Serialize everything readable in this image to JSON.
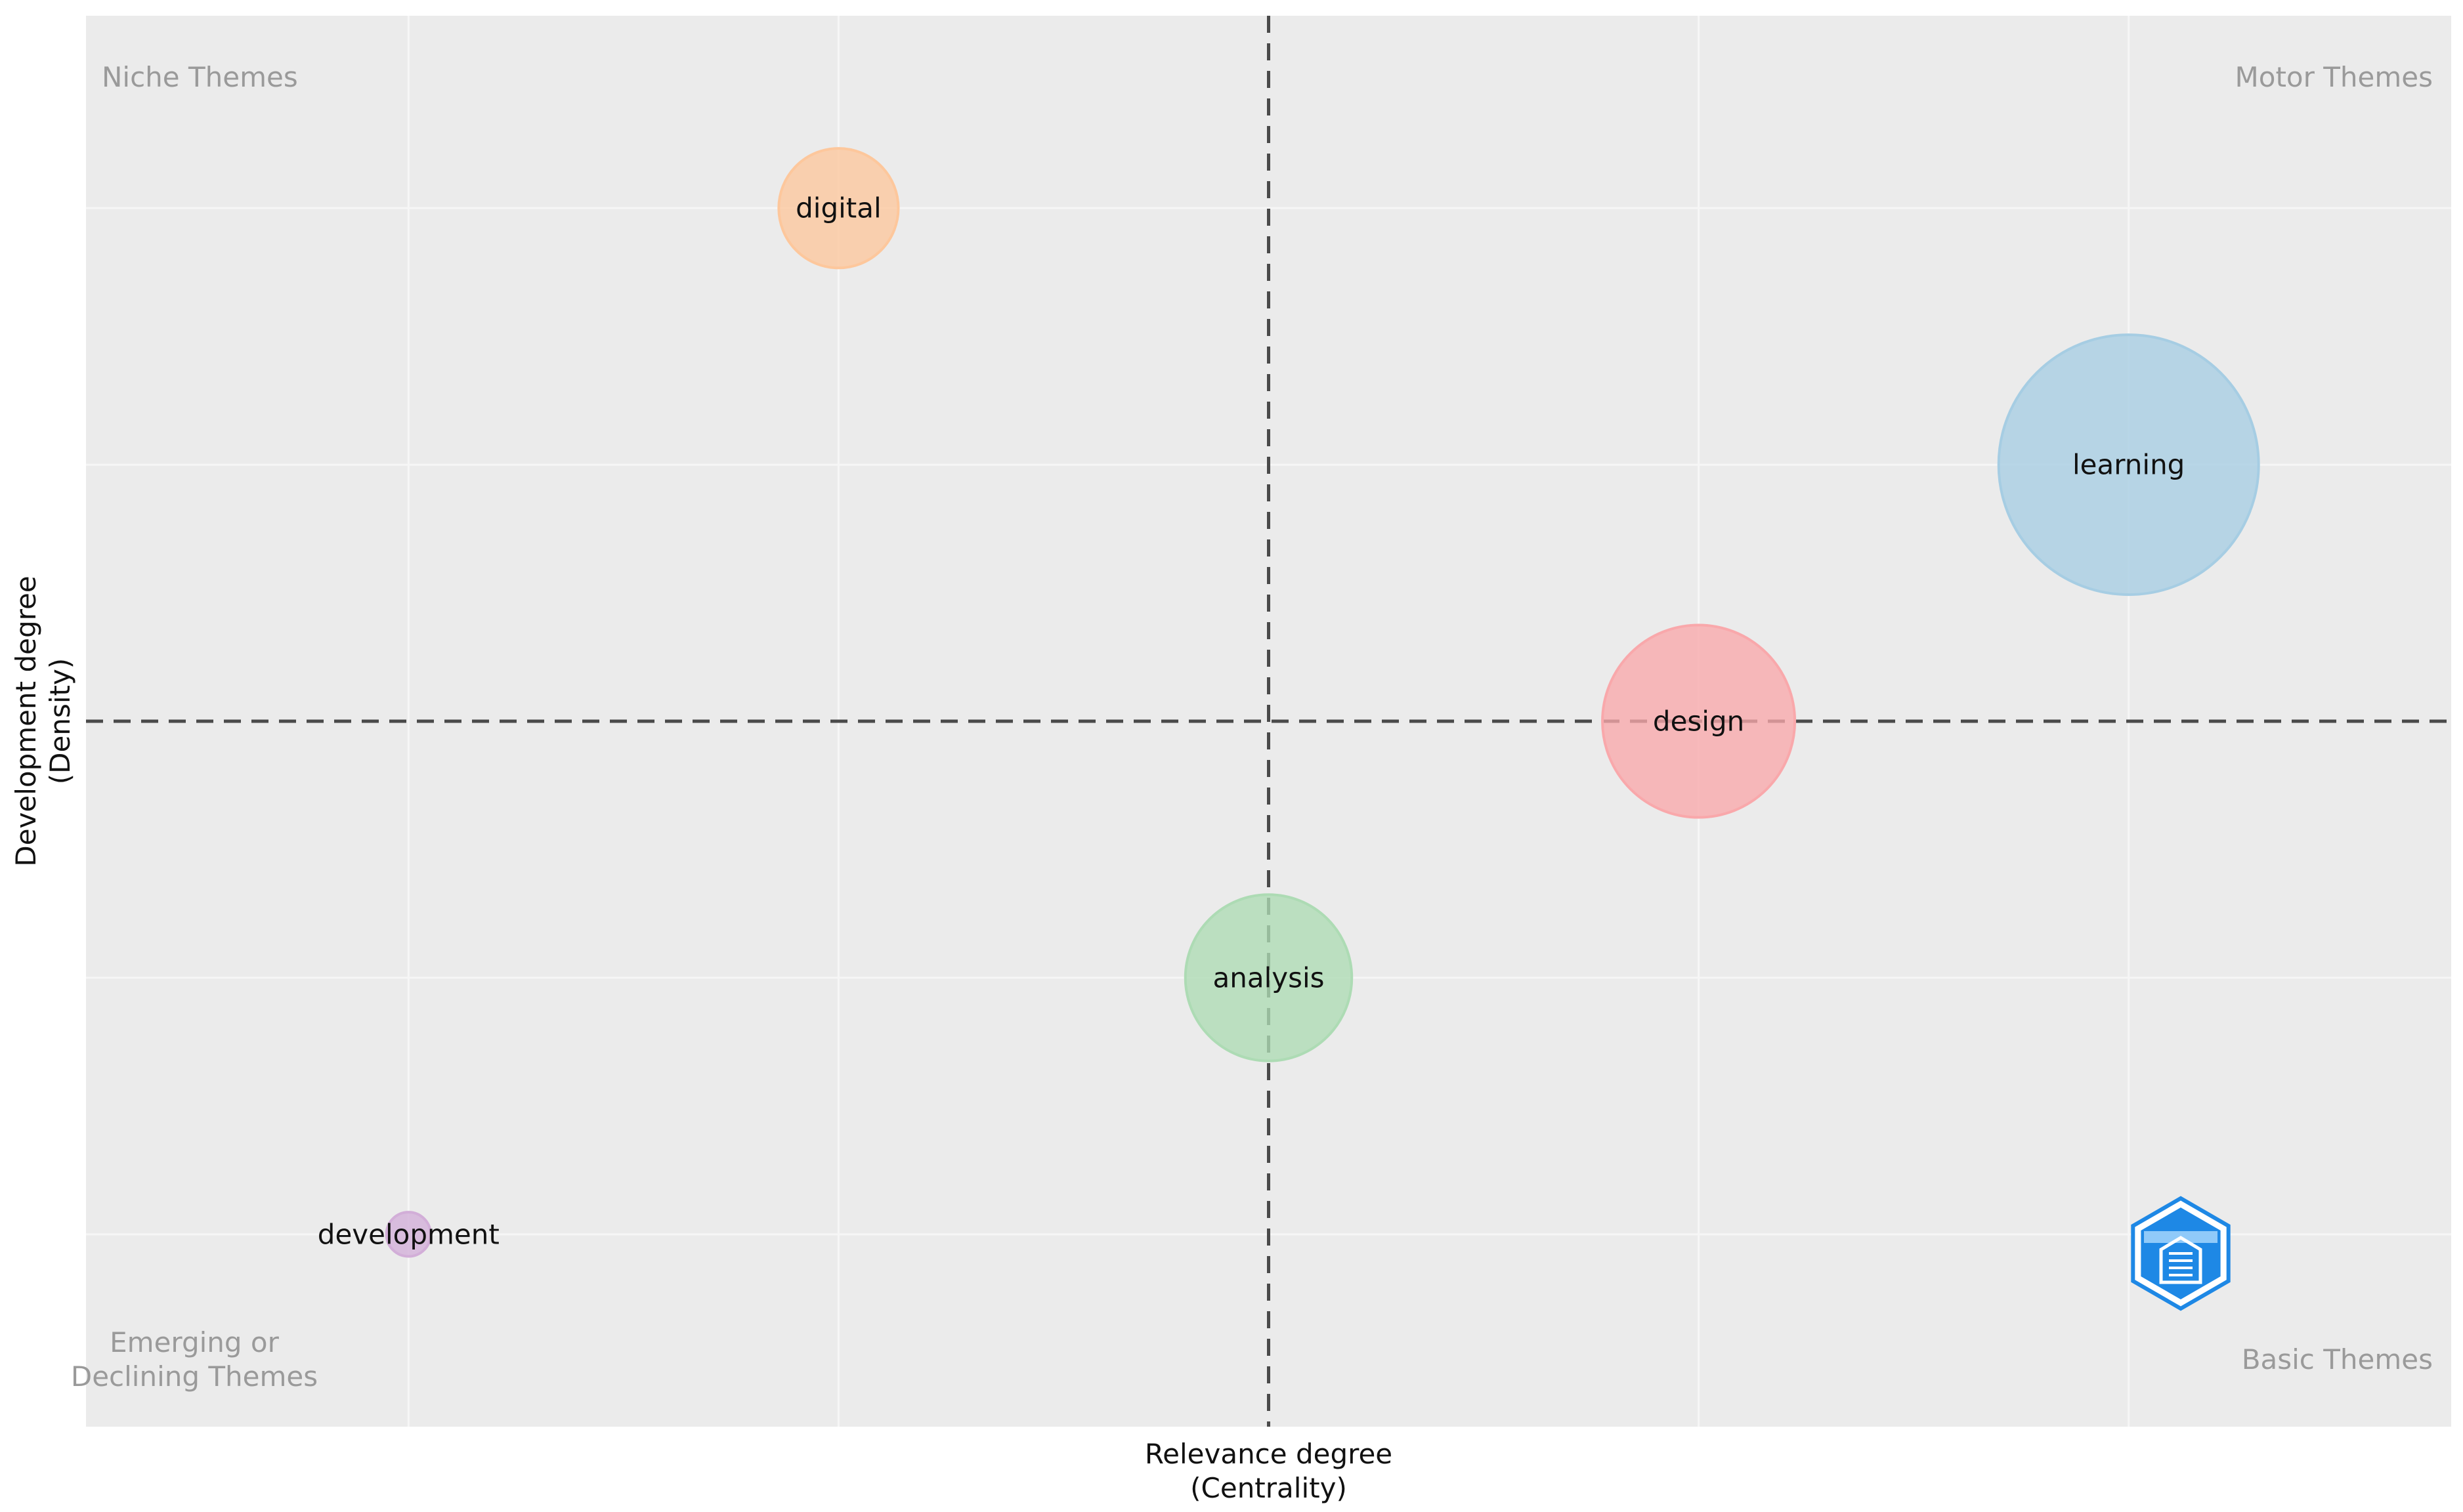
{
  "chart_data": {
    "type": "scatter",
    "subtype": "bubble",
    "xlabel": [
      "Relevance degree",
      "(Centrality)"
    ],
    "ylabel": [
      "Development degree",
      "(Density)"
    ],
    "xlim": [
      -2.75,
      2.75
    ],
    "ylim": [
      -2.75,
      2.75
    ],
    "x_reference": 0,
    "y_reference": 0,
    "grid": true,
    "legend": "none",
    "quadrant_labels": {
      "top_left": [
        "Niche Themes"
      ],
      "top_right": [
        "Motor Themes"
      ],
      "bottom_left": [
        "Emerging or",
        "Declining Themes"
      ],
      "bottom_right": [
        "Basic Themes"
      ]
    },
    "points": [
      {
        "label": "learning",
        "x": 2,
        "y": 1,
        "size": 1.0,
        "color": "#a6cde3"
      },
      {
        "label": "design",
        "x": 1,
        "y": 0,
        "size": 0.74,
        "color": "#f9a8ab"
      },
      {
        "label": "analysis",
        "x": 0,
        "y": -1,
        "size": 0.64,
        "color": "#addbb4"
      },
      {
        "label": "digital",
        "x": -1,
        "y": 2,
        "size": 0.46,
        "color": "#fdc79c"
      },
      {
        "label": "development",
        "x": -2,
        "y": -2,
        "size": 0.17,
        "color": "#d2aed8"
      }
    ]
  },
  "colors": {
    "plot_background": "#ebebeb",
    "grid": "#f6f6f6",
    "reference_line": "#4a4a4a",
    "quadrant_text": "#9a9a9a",
    "logo_blue": "#1e88e5"
  },
  "logo_name": "watermark-shield-logo"
}
